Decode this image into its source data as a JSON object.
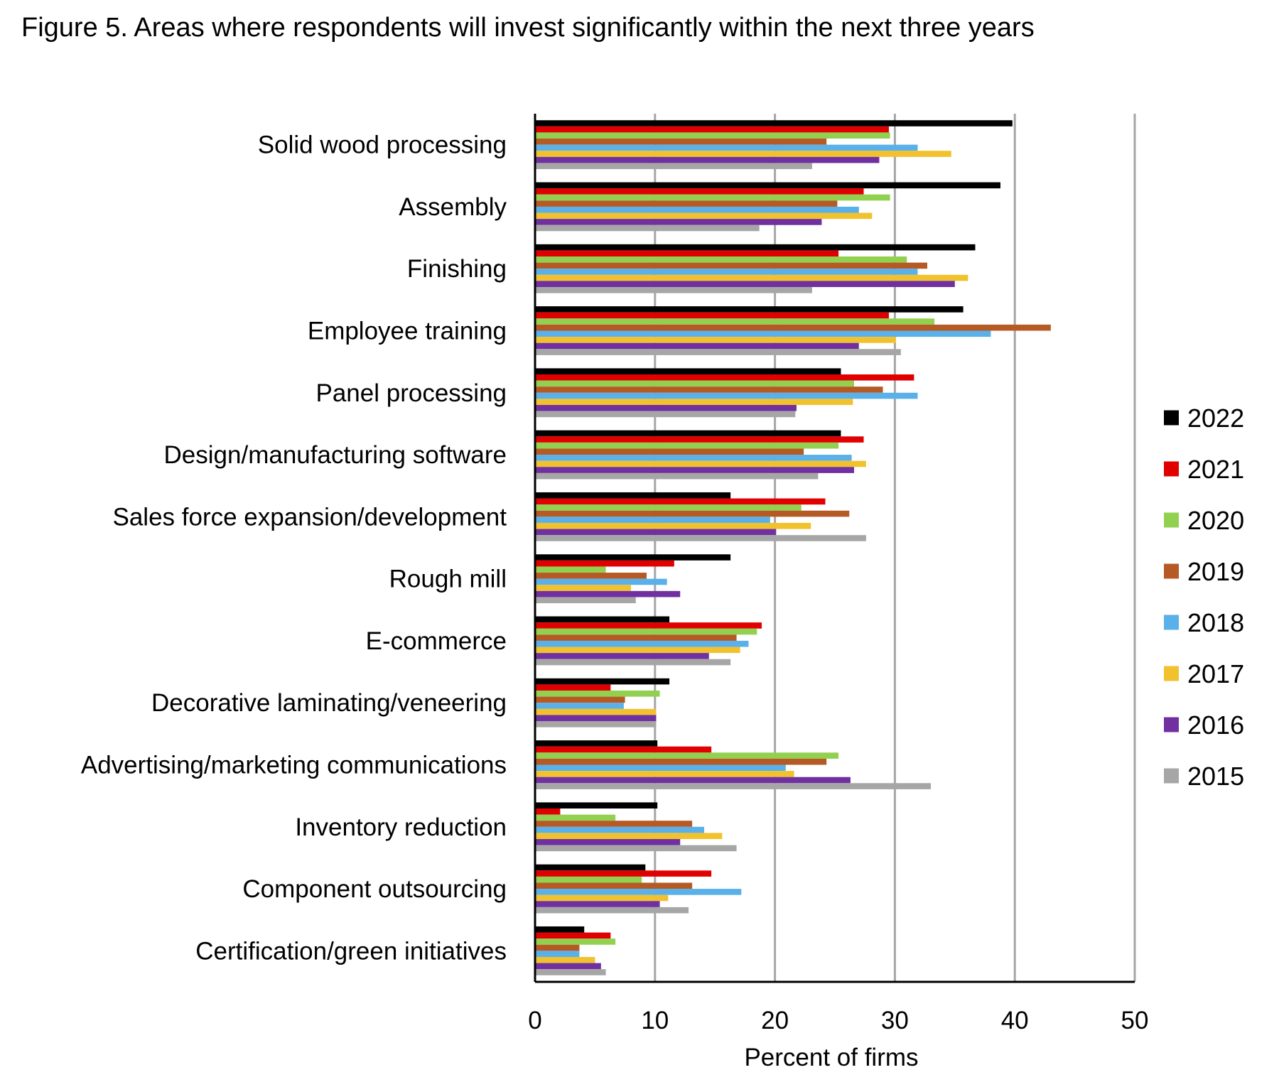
{
  "chart_data": {
    "type": "bar",
    "orientation": "horizontal",
    "title": "Figure 5. Areas where respondents will invest significantly within the next three years",
    "xlabel": "Percent of firms",
    "ylabel": "",
    "xlim": [
      0,
      50
    ],
    "xticks": [
      "0",
      "10",
      "20",
      "30",
      "40",
      "50"
    ],
    "grid": true,
    "legend_position": "right",
    "categories": [
      "Solid wood processing",
      "Assembly",
      "Finishing",
      "Employee training",
      "Panel processing",
      "Design/manufacturing software",
      "Sales force expansion/development",
      "Rough mill",
      "E-commerce",
      "Decorative laminating/veneering",
      "Advertising/marketing communications",
      "Inventory reduction",
      "Component outsourcing",
      "Certification/green initiatives"
    ],
    "series": [
      {
        "name": "2022",
        "color": "#000000",
        "values": [
          39.8,
          38.8,
          36.7,
          35.7,
          25.5,
          25.5,
          16.3,
          16.3,
          11.2,
          11.2,
          10.2,
          10.2,
          9.2,
          4.1
        ]
      },
      {
        "name": "2021",
        "color": "#e00000",
        "values": [
          29.5,
          27.4,
          25.3,
          29.5,
          31.6,
          27.4,
          24.2,
          11.6,
          18.9,
          6.3,
          14.7,
          2.1,
          14.7,
          6.3
        ]
      },
      {
        "name": "2020",
        "color": "#92d050",
        "values": [
          29.6,
          29.6,
          31.0,
          33.3,
          26.6,
          25.3,
          22.2,
          5.9,
          18.5,
          10.4,
          25.3,
          6.7,
          8.9,
          6.7
        ]
      },
      {
        "name": "2019",
        "color": "#b55a24",
        "values": [
          24.3,
          25.2,
          32.7,
          43.0,
          29.0,
          22.4,
          26.2,
          9.3,
          16.8,
          7.5,
          24.3,
          13.1,
          13.1,
          3.7
        ]
      },
      {
        "name": "2018",
        "color": "#5ab0e8",
        "values": [
          31.9,
          27.0,
          31.9,
          38.0,
          31.9,
          26.4,
          19.6,
          11.0,
          17.8,
          7.4,
          20.9,
          14.1,
          17.2,
          3.7
        ]
      },
      {
        "name": "2017",
        "color": "#f2c12e",
        "values": [
          34.7,
          28.1,
          36.1,
          30.1,
          26.5,
          27.6,
          23.0,
          8.0,
          17.1,
          10.1,
          21.6,
          15.6,
          11.1,
          5.0
        ]
      },
      {
        "name": "2016",
        "color": "#7030a0",
        "values": [
          28.7,
          23.9,
          35.0,
          27.0,
          21.8,
          26.6,
          20.1,
          12.1,
          14.5,
          10.1,
          26.3,
          12.1,
          10.4,
          5.5
        ]
      },
      {
        "name": "2015",
        "color": "#a6a6a6",
        "values": [
          23.1,
          18.7,
          23.1,
          30.5,
          21.7,
          23.6,
          27.6,
          8.4,
          16.3,
          10.1,
          33.0,
          16.8,
          12.8,
          5.9
        ]
      }
    ]
  }
}
